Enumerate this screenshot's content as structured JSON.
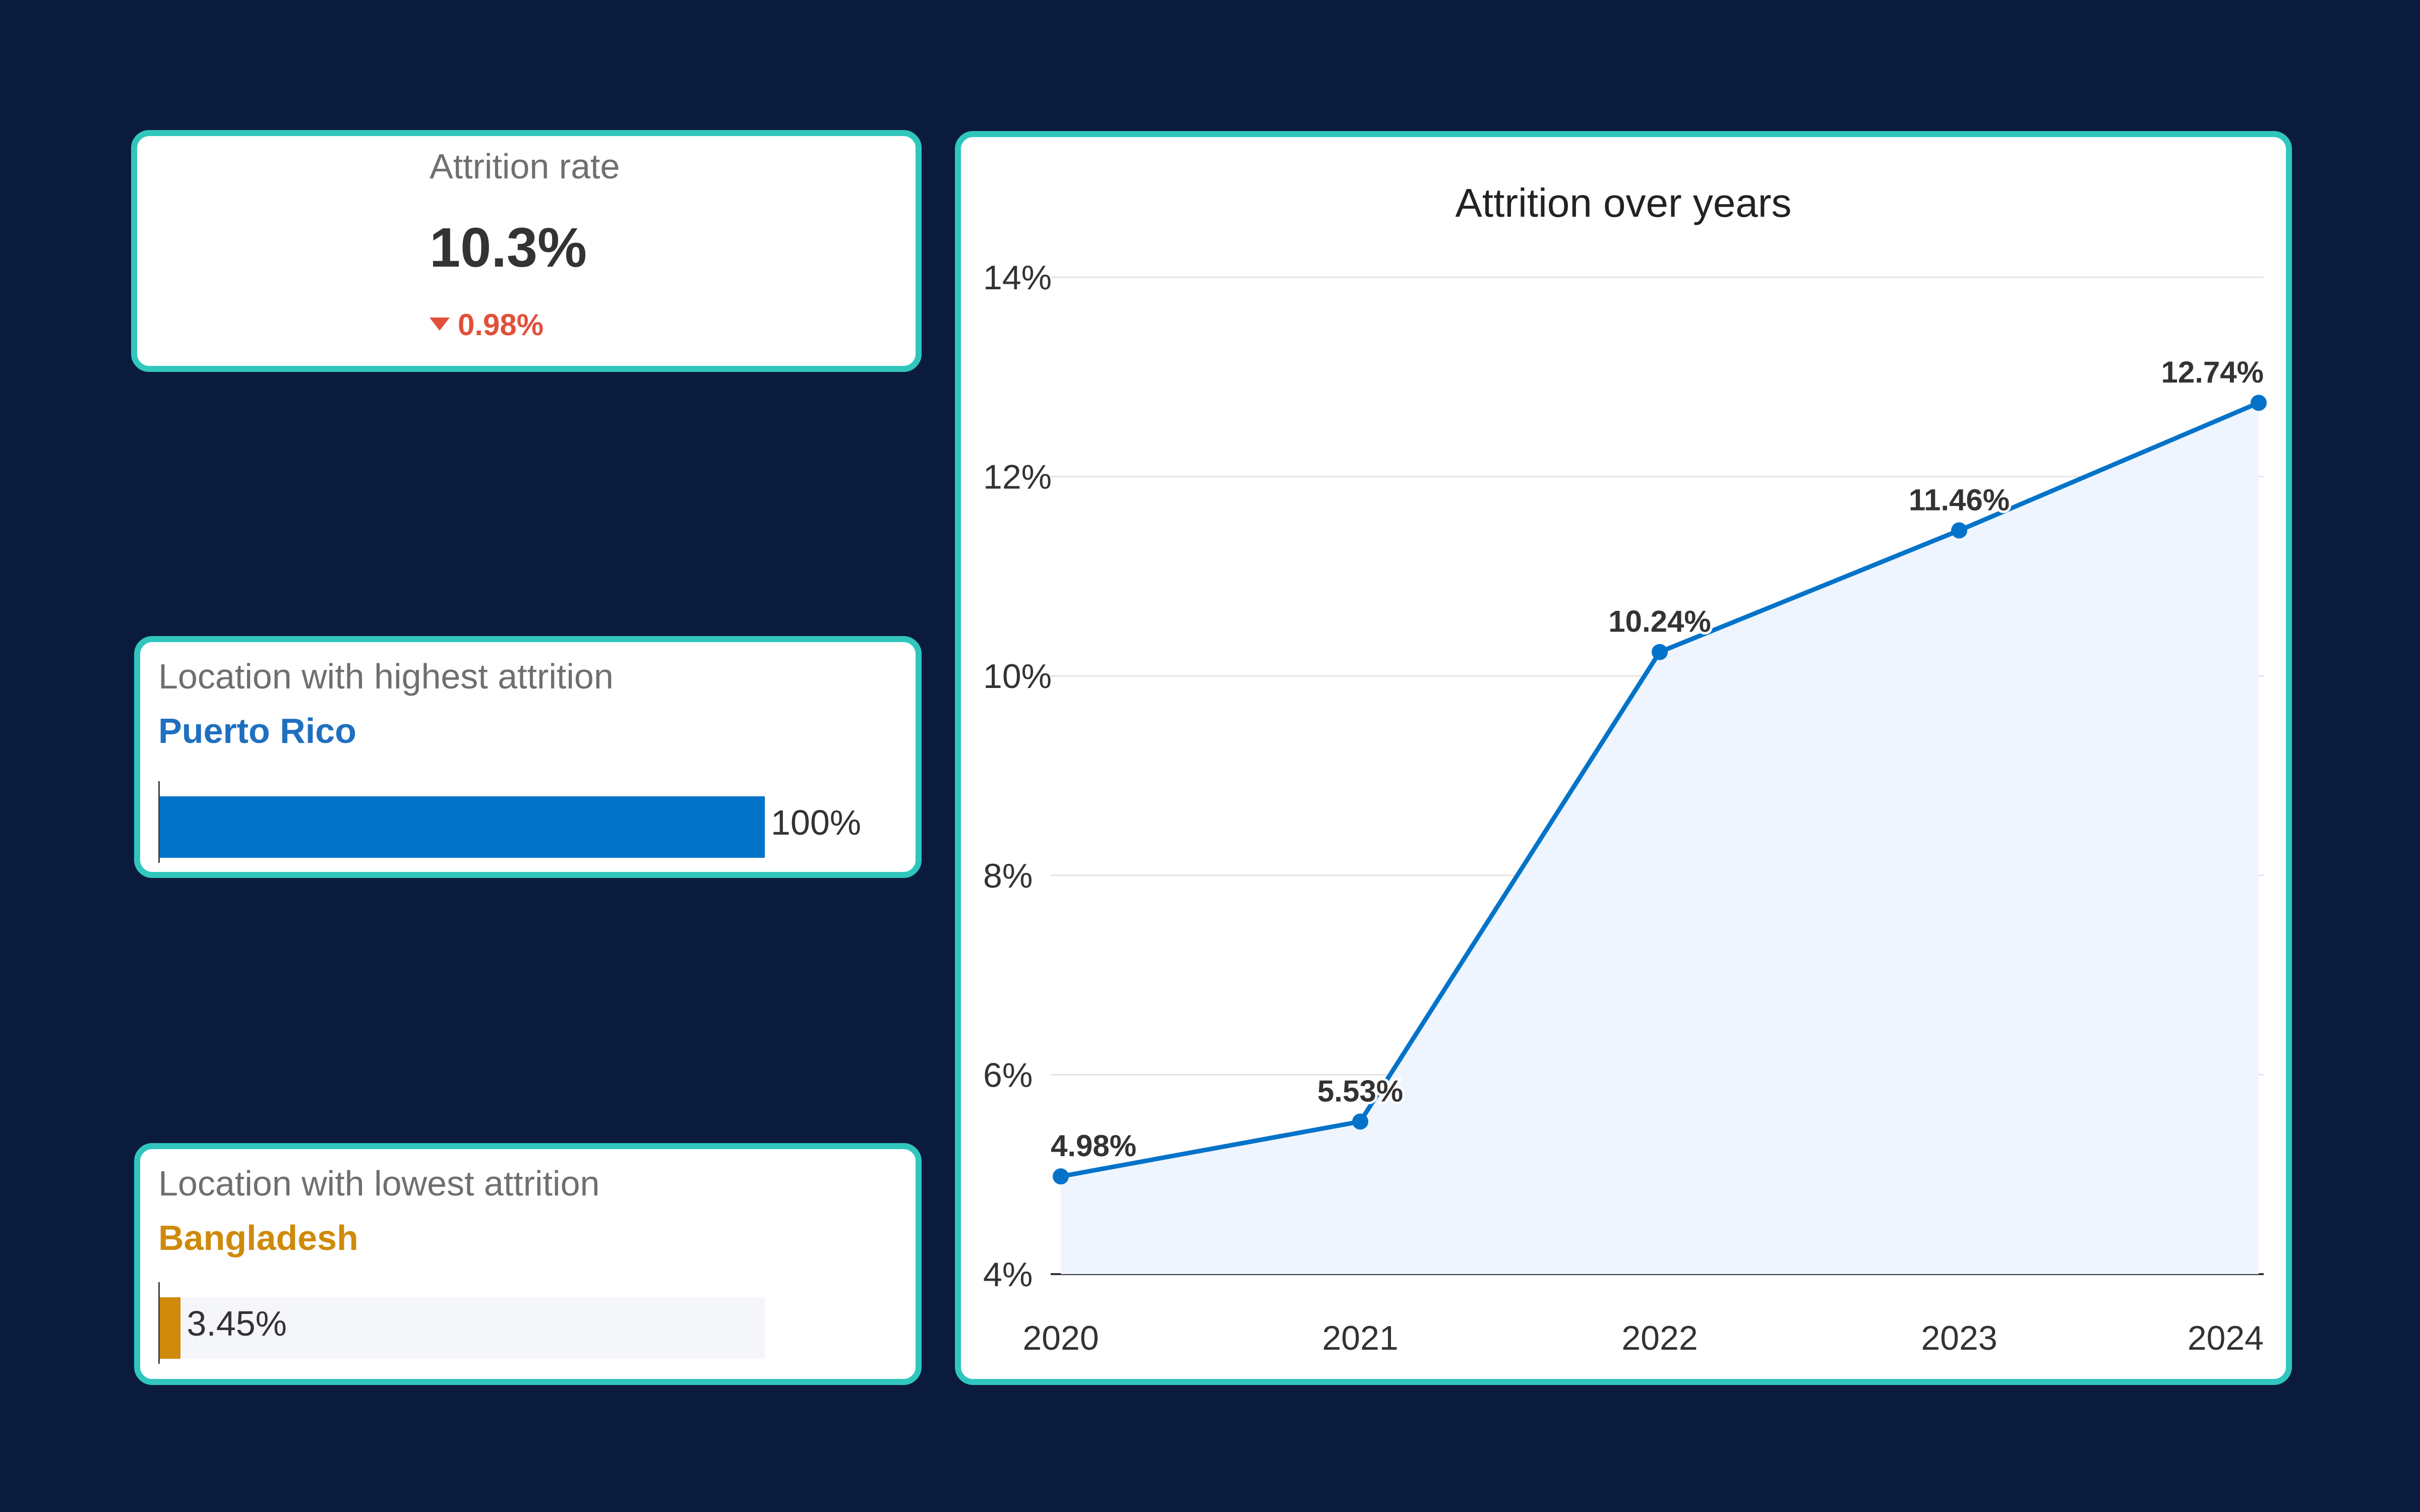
{
  "kpi": {
    "label": "Attrition rate",
    "value": "10.3%",
    "delta": "0.98%",
    "delta_direction": "down",
    "delta_color": "#e0503a"
  },
  "highest": {
    "label": "Location with highest attrition",
    "location": "Puerto Rico",
    "value_text": "100%",
    "value": 100,
    "color": "#0273c9"
  },
  "lowest": {
    "label": "Location with lowest attrition",
    "location": "Bangladesh",
    "value_text": "3.45%",
    "value": 3.45,
    "color": "#cf8a0a"
  },
  "chart_data": {
    "type": "area",
    "title": "Attrition over years",
    "categories": [
      "2020",
      "2021",
      "2022",
      "2023",
      "2024"
    ],
    "series": [
      {
        "values": [
          4.98,
          5.53,
          10.24,
          11.46,
          12.74
        ],
        "labels": [
          "4.98%",
          "5.53%",
          "10.24%",
          "11.46%",
          "12.74%"
        ]
      }
    ],
    "ylim": [
      4,
      14
    ],
    "yticks": [
      4,
      6,
      8,
      10,
      12,
      14
    ],
    "ytick_labels": [
      "4%",
      "6%",
      "8%",
      "10%",
      "12%",
      "14%"
    ],
    "grid": true,
    "line_color": "#0273c9",
    "fill_color": "#eef5fe"
  }
}
